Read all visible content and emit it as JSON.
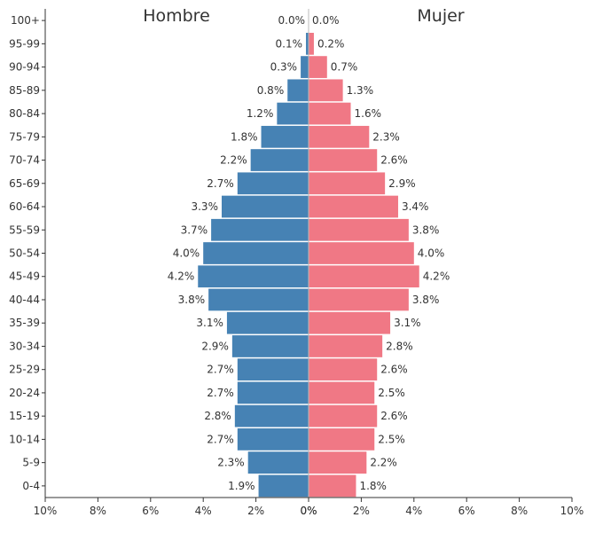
{
  "chart_data": {
    "type": "bar",
    "orientation": "horizontal",
    "layout": "population-pyramid",
    "left_title": "Hombre",
    "right_title": "Mujer",
    "categories": [
      "0-4",
      "5-9",
      "10-14",
      "15-19",
      "20-24",
      "25-29",
      "30-34",
      "35-39",
      "40-44",
      "45-49",
      "50-54",
      "55-59",
      "60-64",
      "65-69",
      "70-74",
      "75-79",
      "80-84",
      "85-89",
      "90-94",
      "95-99",
      "100+"
    ],
    "series": [
      {
        "name": "Hombre",
        "side": "left",
        "color": "#4682b4",
        "values": [
          1.9,
          2.3,
          2.7,
          2.8,
          2.7,
          2.7,
          2.9,
          3.1,
          3.8,
          4.2,
          4.0,
          3.7,
          3.3,
          2.7,
          2.2,
          1.8,
          1.2,
          0.8,
          0.3,
          0.1,
          0.0
        ]
      },
      {
        "name": "Mujer",
        "side": "right",
        "color": "#f07885",
        "values": [
          1.8,
          2.2,
          2.5,
          2.6,
          2.5,
          2.6,
          2.8,
          3.1,
          3.8,
          4.2,
          4.0,
          3.8,
          3.4,
          2.9,
          2.6,
          2.3,
          1.6,
          1.3,
          0.7,
          0.2,
          0.0
        ]
      }
    ],
    "x_ticks": [
      "10%",
      "8%",
      "6%",
      "4%",
      "2%",
      "0%",
      "2%",
      "4%",
      "6%",
      "8%",
      "10%"
    ],
    "xlim": [
      -10,
      10
    ],
    "value_suffix": "%",
    "grid": false
  }
}
